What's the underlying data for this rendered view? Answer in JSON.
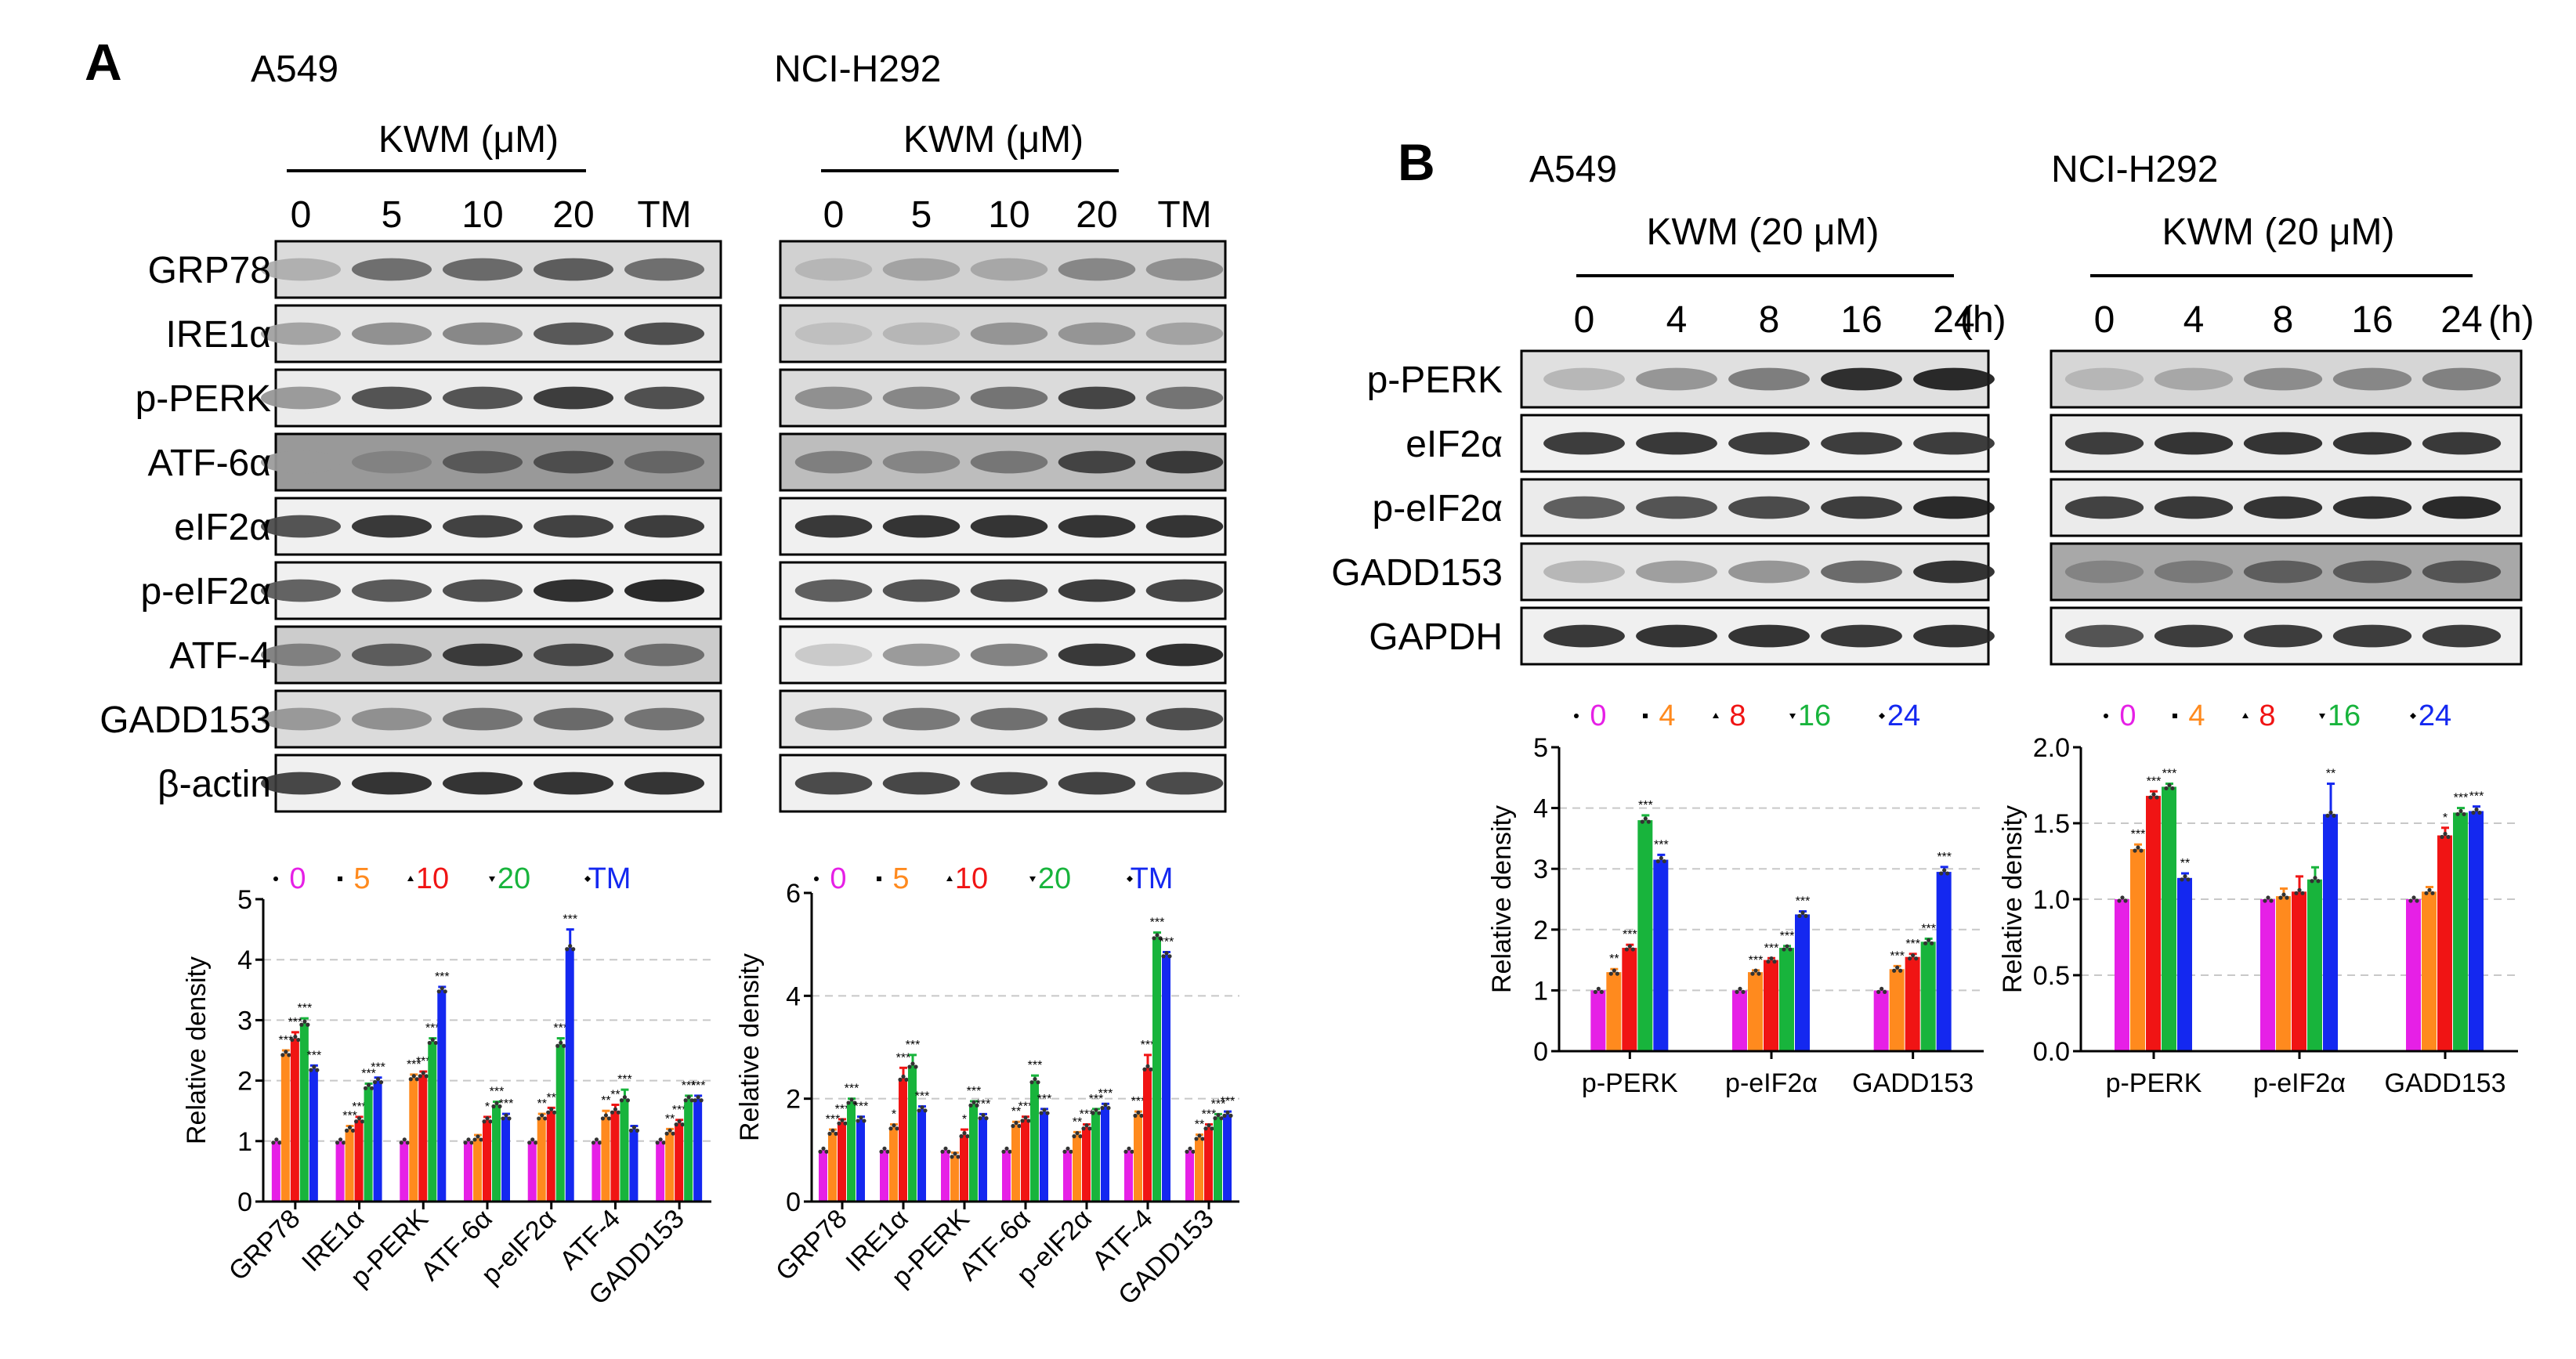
{
  "panel_letters": {
    "a": "A",
    "b": "B"
  },
  "blots": [
    {
      "cell": "A549",
      "condition": "KWM (μM)",
      "lanes": [
        "0",
        "5",
        "10",
        "20",
        "TM"
      ],
      "rows": [
        {
          "label": "GRP78",
          "intensity": [
            0.32,
            0.6,
            0.62,
            0.68,
            0.6
          ],
          "bg": 0.14
        },
        {
          "label": "IRE1α",
          "intensity": [
            0.38,
            0.46,
            0.5,
            0.7,
            0.74
          ],
          "bg": 0.1
        },
        {
          "label": "p-PERK",
          "intensity": [
            0.42,
            0.72,
            0.72,
            0.82,
            0.74
          ],
          "bg": 0.08
        },
        {
          "label": "ATF-6α",
          "intensity": [
            0.4,
            0.5,
            0.68,
            0.72,
            0.62
          ],
          "bg": 0.4
        },
        {
          "label": "eIF2α",
          "intensity": [
            0.72,
            0.84,
            0.8,
            0.8,
            0.82
          ],
          "bg": 0.06
        },
        {
          "label": "p-eIF2α",
          "intensity": [
            0.66,
            0.7,
            0.74,
            0.88,
            0.9
          ],
          "bg": 0.06
        },
        {
          "label": "ATF-4",
          "intensity": [
            0.52,
            0.68,
            0.82,
            0.76,
            0.6
          ],
          "bg": 0.2
        },
        {
          "label": "GADD153",
          "intensity": [
            0.42,
            0.46,
            0.58,
            0.62,
            0.58
          ],
          "bg": 0.14
        },
        {
          "label": "β-actin",
          "intensity": [
            0.78,
            0.86,
            0.86,
            0.86,
            0.86
          ],
          "bg": 0.06
        }
      ]
    },
    {
      "cell": "NCI-H292",
      "condition": "KWM (μM)",
      "lanes": [
        "0",
        "5",
        "10",
        "20",
        "TM"
      ],
      "rows": [
        {
          "label": "GRP78",
          "intensity": [
            0.3,
            0.38,
            0.36,
            0.5,
            0.46
          ],
          "bg": 0.18
        },
        {
          "label": "IRE1α",
          "intensity": [
            0.26,
            0.3,
            0.44,
            0.44,
            0.38
          ],
          "bg": 0.16
        },
        {
          "label": "p-PERK",
          "intensity": [
            0.46,
            0.5,
            0.58,
            0.78,
            0.58
          ],
          "bg": 0.14
        },
        {
          "label": "ATF-6α",
          "intensity": [
            0.52,
            0.5,
            0.56,
            0.78,
            0.82
          ],
          "bg": 0.26
        },
        {
          "label": "eIF2α",
          "intensity": [
            0.84,
            0.86,
            0.86,
            0.86,
            0.86
          ],
          "bg": 0.06
        },
        {
          "label": "p-eIF2α",
          "intensity": [
            0.68,
            0.72,
            0.76,
            0.82,
            0.78
          ],
          "bg": 0.06
        },
        {
          "label": "ATF-4",
          "intensity": [
            0.22,
            0.42,
            0.52,
            0.84,
            0.88
          ],
          "bg": 0.06
        },
        {
          "label": "GADD153",
          "intensity": [
            0.46,
            0.56,
            0.6,
            0.72,
            0.74
          ],
          "bg": 0.1
        },
        {
          "label": "β-actin",
          "intensity": [
            0.76,
            0.78,
            0.78,
            0.8,
            0.76
          ],
          "bg": 0.06
        }
      ]
    },
    {
      "cell": "A549",
      "condition": "KWM (20 μM)",
      "lanes": [
        "0",
        "4",
        "8",
        "16",
        "24"
      ],
      "unit": "(h)",
      "rows": [
        {
          "label": "p-PERK",
          "intensity": [
            0.3,
            0.44,
            0.54,
            0.88,
            0.9
          ],
          "bg": 0.12
        },
        {
          "label": "eIF2α",
          "intensity": [
            0.82,
            0.84,
            0.82,
            0.82,
            0.82
          ],
          "bg": 0.06
        },
        {
          "label": "p-eIF2α",
          "intensity": [
            0.68,
            0.72,
            0.76,
            0.82,
            0.9
          ],
          "bg": 0.08
        },
        {
          "label": "GADD153",
          "intensity": [
            0.3,
            0.4,
            0.44,
            0.62,
            0.86
          ],
          "bg": 0.1
        },
        {
          "label": "GAPDH",
          "intensity": [
            0.84,
            0.86,
            0.86,
            0.84,
            0.86
          ],
          "bg": 0.06
        }
      ]
    },
    {
      "cell": "NCI-H292",
      "condition": "KWM (20 μM)",
      "lanes": [
        "0",
        "4",
        "8",
        "16",
        "24"
      ],
      "unit": "(h)",
      "rows": [
        {
          "label": "p-PERK",
          "intensity": [
            0.3,
            0.36,
            0.48,
            0.5,
            0.52
          ],
          "bg": 0.16
        },
        {
          "label": "eIF2α",
          "intensity": [
            0.82,
            0.86,
            0.86,
            0.86,
            0.84
          ],
          "bg": 0.08
        },
        {
          "label": "p-eIF2α",
          "intensity": [
            0.8,
            0.84,
            0.86,
            0.88,
            0.9
          ],
          "bg": 0.08
        },
        {
          "label": "GADD153",
          "intensity": [
            0.5,
            0.54,
            0.66,
            0.68,
            0.7
          ],
          "bg": 0.34
        },
        {
          "label": "GAPDH",
          "intensity": [
            0.72,
            0.82,
            0.82,
            0.82,
            0.82
          ],
          "bg": 0.06
        }
      ]
    }
  ],
  "chart_data": [
    {
      "type": "bar",
      "categories": [
        "GRP78",
        "IRE1α",
        "p-PERK",
        "ATF-6α",
        "p-eIF2α",
        "ATF-4",
        "GADD153"
      ],
      "ylabel": "Relative density",
      "ylim": [
        0,
        5
      ],
      "yticks": [
        "0",
        "1",
        "2",
        "3",
        "4",
        "5"
      ],
      "grid": "dashed at 1, 2, 3, 4",
      "legend_position": "top",
      "series": [
        {
          "name": "0",
          "color": "#e620e6",
          "values": [
            1.0,
            1.0,
            1.0,
            1.0,
            1.0,
            1.0,
            1.0
          ],
          "err": [
            0,
            0,
            0,
            0,
            0,
            0,
            0
          ],
          "sig": [
            "",
            "",
            "",
            "",
            "",
            "",
            ""
          ]
        },
        {
          "name": "5",
          "color": "#ff8a1e",
          "values": [
            2.45,
            1.2,
            2.05,
            1.05,
            1.4,
            1.4,
            1.15
          ],
          "err": [
            0.05,
            0.05,
            0.05,
            0.05,
            0.05,
            0.1,
            0.05
          ],
          "sig": [
            "***",
            "***",
            "***",
            "",
            "**",
            "**",
            "**"
          ]
        },
        {
          "name": "10",
          "color": "#f01414",
          "values": [
            2.7,
            1.35,
            2.1,
            1.35,
            1.5,
            1.5,
            1.3
          ],
          "err": [
            0.1,
            0.05,
            0.05,
            0.05,
            0.05,
            0.1,
            0.05
          ],
          "sig": [
            "***",
            "***",
            "***",
            "*",
            "**",
            "**",
            "***"
          ]
        },
        {
          "name": "20",
          "color": "#18b43c",
          "values": [
            2.95,
            1.9,
            2.65,
            1.6,
            2.6,
            1.7,
            1.7
          ],
          "err": [
            0.08,
            0.05,
            0.05,
            0.05,
            0.1,
            0.15,
            0.05
          ],
          "sig": [
            "***",
            "***",
            "***",
            "***",
            "***",
            "***",
            "***"
          ]
        },
        {
          "name": "TM",
          "color": "#1428f0",
          "values": [
            2.2,
            2.0,
            3.5,
            1.4,
            4.2,
            1.2,
            1.7
          ],
          "err": [
            0.05,
            0.05,
            0.05,
            0.05,
            0.3,
            0.05,
            0.05
          ],
          "sig": [
            "***",
            "***",
            "***",
            "***",
            "***",
            "",
            "***"
          ]
        }
      ]
    },
    {
      "type": "bar",
      "categories": [
        "GRP78",
        "IRE1α",
        "p-PERK",
        "ATF-6α",
        "p-eIF2α",
        "ATF-4",
        "GADD153"
      ],
      "ylabel": "Relative density",
      "ylim": [
        0,
        6
      ],
      "yticks": [
        "0",
        "2",
        "4",
        "6"
      ],
      "grid": "dashed at 2, 4",
      "legend_position": "top",
      "series": [
        {
          "name": "0",
          "color": "#e620e6",
          "values": [
            1.0,
            1.0,
            1.0,
            1.0,
            1.0,
            1.0,
            1.0
          ],
          "err": [
            0,
            0,
            0,
            0,
            0,
            0,
            0
          ],
          "sig": [
            "",
            "",
            "",
            "",
            "",
            "",
            ""
          ]
        },
        {
          "name": "5",
          "color": "#ff8a1e",
          "values": [
            1.35,
            1.45,
            0.9,
            1.5,
            1.3,
            1.7,
            1.25
          ],
          "err": [
            0.05,
            0.05,
            0.05,
            0.05,
            0.05,
            0.05,
            0.05
          ],
          "sig": [
            "***",
            "*",
            "",
            "**",
            "**",
            "***",
            "**"
          ]
        },
        {
          "name": "10",
          "color": "#f01414",
          "values": [
            1.55,
            2.4,
            1.3,
            1.6,
            1.45,
            2.6,
            1.45
          ],
          "err": [
            0.05,
            0.2,
            0.1,
            0.05,
            0.05,
            0.25,
            0.05
          ],
          "sig": [
            "***",
            "***",
            "*",
            "***",
            "***",
            "***",
            "***"
          ]
        },
        {
          "name": "20",
          "color": "#18b43c",
          "values": [
            1.95,
            2.65,
            1.9,
            2.35,
            1.75,
            5.15,
            1.65
          ],
          "err": [
            0.05,
            0.2,
            0.05,
            0.1,
            0.05,
            0.08,
            0.05
          ],
          "sig": [
            "***",
            "***",
            "***",
            "***",
            "***",
            "***",
            "***"
          ]
        },
        {
          "name": "TM",
          "color": "#1428f0",
          "values": [
            1.6,
            1.8,
            1.65,
            1.75,
            1.85,
            4.8,
            1.7
          ],
          "err": [
            0.05,
            0.05,
            0.05,
            0.05,
            0.05,
            0.05,
            0.05
          ],
          "sig": [
            "***",
            "***",
            "***",
            "***",
            "***",
            "***",
            "***"
          ]
        }
      ]
    },
    {
      "type": "bar",
      "categories": [
        "p-PERK",
        "p-eIF2α",
        "GADD153"
      ],
      "ylabel": "Relative density",
      "ylim": [
        0,
        5
      ],
      "yticks": [
        "0",
        "1",
        "2",
        "3",
        "4",
        "5"
      ],
      "grid": "dashed at 1, 2, 3, 4",
      "legend_position": "top",
      "series": [
        {
          "name": "0",
          "color": "#e620e6",
          "values": [
            1.0,
            1.0,
            1.0
          ],
          "err": [
            0,
            0,
            0
          ],
          "sig": [
            "",
            "",
            ""
          ]
        },
        {
          "name": "4",
          "color": "#ff8a1e",
          "values": [
            1.3,
            1.3,
            1.35
          ],
          "err": [
            0.05,
            0.03,
            0.05
          ],
          "sig": [
            "**",
            "***",
            "***"
          ]
        },
        {
          "name": "8",
          "color": "#f01414",
          "values": [
            1.7,
            1.5,
            1.55
          ],
          "err": [
            0.05,
            0.03,
            0.05
          ],
          "sig": [
            "***",
            "***",
            "***"
          ]
        },
        {
          "name": "16",
          "color": "#18b43c",
          "values": [
            3.8,
            1.7,
            1.8
          ],
          "err": [
            0.08,
            0.03,
            0.05
          ],
          "sig": [
            "***",
            "***",
            "***"
          ]
        },
        {
          "name": "24",
          "color": "#1428f0",
          "values": [
            3.15,
            2.25,
            2.95
          ],
          "err": [
            0.08,
            0.05,
            0.08
          ],
          "sig": [
            "***",
            "***",
            "***"
          ]
        }
      ]
    },
    {
      "type": "bar",
      "categories": [
        "p-PERK",
        "p-eIF2α",
        "GADD153"
      ],
      "ylabel": "Relative density",
      "ylim": [
        0,
        2.0
      ],
      "yticks": [
        "0.0",
        "0.5",
        "1.0",
        "1.5",
        "2.0"
      ],
      "grid": "dashed at 0.5, 1.0, 1.5",
      "legend_position": "top",
      "series": [
        {
          "name": "0",
          "color": "#e620e6",
          "values": [
            1.0,
            1.0,
            1.0
          ],
          "err": [
            0,
            0,
            0
          ],
          "sig": [
            "",
            "",
            ""
          ]
        },
        {
          "name": "4",
          "color": "#ff8a1e",
          "values": [
            1.33,
            1.02,
            1.05
          ],
          "err": [
            0.03,
            0.05,
            0.03
          ],
          "sig": [
            "***",
            "",
            ""
          ]
        },
        {
          "name": "8",
          "color": "#f01414",
          "values": [
            1.68,
            1.05,
            1.42
          ],
          "err": [
            0.03,
            0.1,
            0.05
          ],
          "sig": [
            "***",
            "",
            "*"
          ]
        },
        {
          "name": "16",
          "color": "#18b43c",
          "values": [
            1.74,
            1.13,
            1.57
          ],
          "err": [
            0.02,
            0.08,
            0.03
          ],
          "sig": [
            "***",
            "",
            "***"
          ]
        },
        {
          "name": "24",
          "color": "#1428f0",
          "values": [
            1.14,
            1.56,
            1.58
          ],
          "err": [
            0.03,
            0.2,
            0.03
          ],
          "sig": [
            "**",
            "**",
            "***"
          ]
        }
      ]
    }
  ]
}
